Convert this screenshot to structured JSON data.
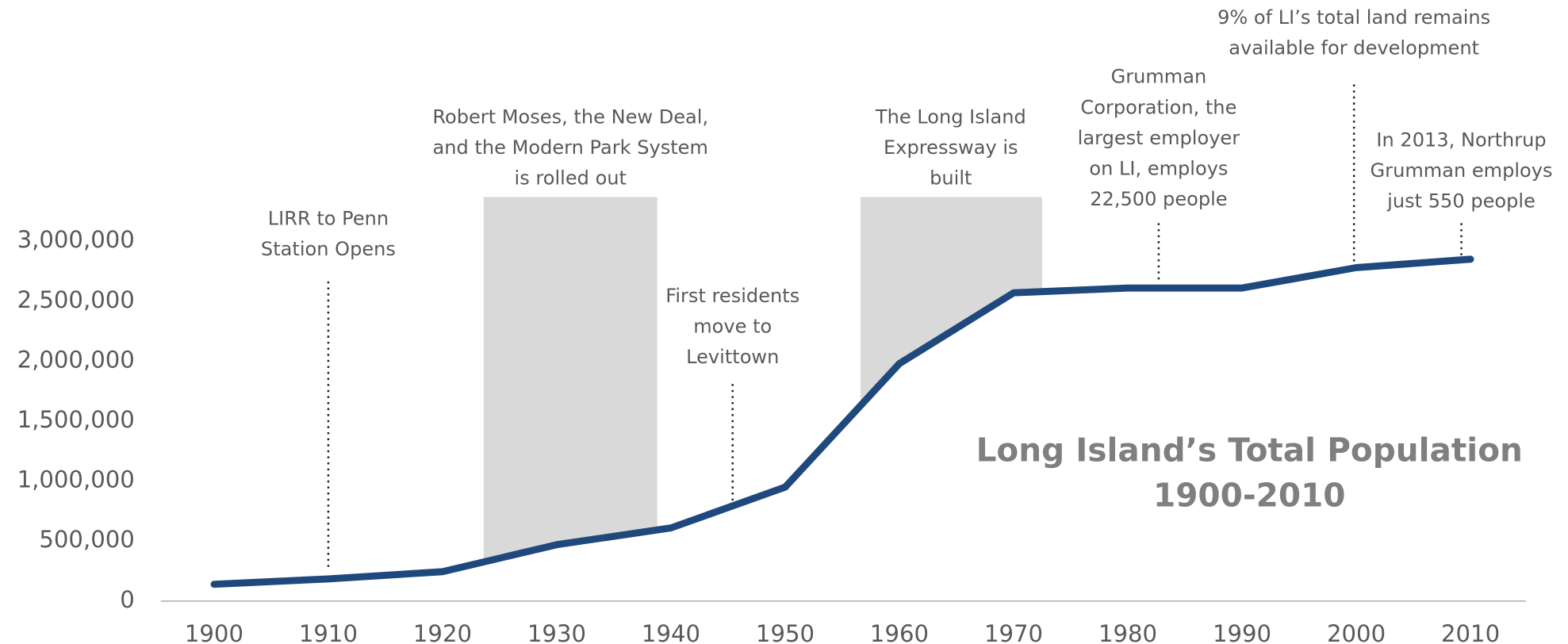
{
  "chart_data": {
    "type": "line",
    "title": "Long Island’s Total Population",
    "subtitle": "1900-2010",
    "x": [
      1900,
      1910,
      1920,
      1930,
      1940,
      1950,
      1960,
      1970,
      1980,
      1990,
      2000,
      2010
    ],
    "series": [
      {
        "name": "Total Population",
        "color": "#1f497d",
        "values": [
          140000,
          185000,
          245000,
          470000,
          610000,
          950000,
          1980000,
          2570000,
          2610000,
          2610000,
          2780000,
          2850000
        ]
      }
    ],
    "xlim": [
      1900,
      2010
    ],
    "xticks": [
      1900,
      1910,
      1920,
      1930,
      1940,
      1950,
      1960,
      1970,
      1980,
      1990,
      2000,
      2010
    ],
    "ylim": [
      0,
      3000000
    ],
    "yticks": [
      0,
      {
        "value": 500000,
        "label": "500,000"
      },
      {
        "value": 1000000,
        "label": "1,000,000"
      },
      {
        "value": 1500000,
        "label": "1,500,000"
      },
      {
        "value": 2000000,
        "label": "2,000,000"
      },
      {
        "value": 2500000,
        "label": "2,500,000"
      },
      {
        "value": 3000000,
        "label": "3,000,000"
      }
    ],
    "spans": [
      {
        "from": 1923.6,
        "to": 1938.8
      },
      {
        "from": 1956.6,
        "to": 1972.5
      }
    ],
    "annotations": [
      {
        "x": 1910,
        "lines": [
          "LIRR to Penn",
          "Station Opens"
        ]
      },
      {
        "x": 1931.2,
        "lines": [
          "Robert Moses, the New Deal,",
          "and the Modern Park System",
          "is rolled out"
        ]
      },
      {
        "x": 1945.4,
        "lines": [
          "First residents",
          "move to",
          "Levittown"
        ]
      },
      {
        "x": 1964.5,
        "lines": [
          "The Long Island",
          "Expressway is",
          "built"
        ]
      },
      {
        "x": 1982.7,
        "lines": [
          "Grumman",
          "Corporation, the",
          "largest employer",
          "on LI,  employs",
          "22,500 people"
        ]
      },
      {
        "x": 1999.8,
        "lines": [
          "9% of LI’s total land remains",
          "available for development"
        ]
      },
      {
        "x": 2009.2,
        "lines": [
          "In 2013, Northrup",
          "Grumman employs",
          "just 550 people"
        ]
      }
    ]
  }
}
